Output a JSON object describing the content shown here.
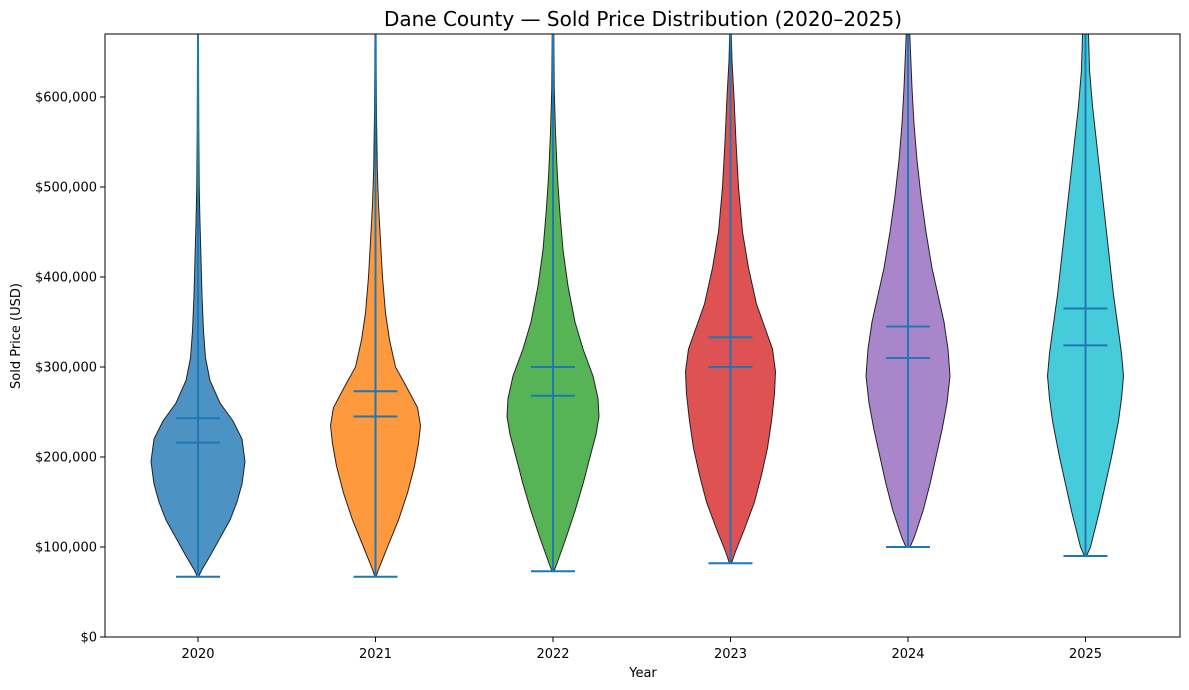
{
  "chart_data": {
    "type": "violin",
    "title": "Dane County — Sold Price Distribution (2020–2025)",
    "xlabel": "Year",
    "ylabel": "Sold Price (USD)",
    "ylim": [
      0,
      670000
    ],
    "yticks": [
      0,
      100000,
      200000,
      300000,
      400000,
      500000,
      600000
    ],
    "ytick_labels": [
      "$0",
      "$100,000",
      "$200,000",
      "$300,000",
      "$400,000",
      "$500,000",
      "$600,000"
    ],
    "categories": [
      "2020",
      "2021",
      "2022",
      "2023",
      "2024",
      "2025"
    ],
    "colors": [
      "#1f77b4",
      "#ff7f0e",
      "#2ca02c",
      "#d62728",
      "#9467bd",
      "#17becf"
    ],
    "stat_line_color": "#1f77b4",
    "grid": false,
    "series": [
      {
        "category": "2020",
        "min": 67000,
        "max": 670000,
        "median": 216000,
        "mean": 243000,
        "profile": [
          [
            67000,
            0.005
          ],
          [
            75000,
            0.04
          ],
          [
            90000,
            0.12
          ],
          [
            110000,
            0.22
          ],
          [
            130000,
            0.32
          ],
          [
            150000,
            0.39
          ],
          [
            170000,
            0.44
          ],
          [
            195000,
            0.47
          ],
          [
            220000,
            0.44
          ],
          [
            240000,
            0.35
          ],
          [
            260000,
            0.22
          ],
          [
            285000,
            0.12
          ],
          [
            310000,
            0.075
          ],
          [
            340000,
            0.055
          ],
          [
            380000,
            0.04
          ],
          [
            420000,
            0.03
          ],
          [
            460000,
            0.02
          ],
          [
            500000,
            0.012
          ],
          [
            560000,
            0.008
          ],
          [
            620000,
            0.006
          ],
          [
            670000,
            0.005
          ]
        ]
      },
      {
        "category": "2021",
        "min": 67000,
        "max": 670000,
        "median": 245000,
        "mean": 273000,
        "profile": [
          [
            67000,
            0.005
          ],
          [
            75000,
            0.03
          ],
          [
            100000,
            0.12
          ],
          [
            130000,
            0.23
          ],
          [
            160000,
            0.32
          ],
          [
            190000,
            0.39
          ],
          [
            215000,
            0.43
          ],
          [
            235000,
            0.45
          ],
          [
            255000,
            0.42
          ],
          [
            280000,
            0.3
          ],
          [
            300000,
            0.2
          ],
          [
            330000,
            0.14
          ],
          [
            360000,
            0.1
          ],
          [
            400000,
            0.07
          ],
          [
            440000,
            0.05
          ],
          [
            480000,
            0.03
          ],
          [
            520000,
            0.018
          ],
          [
            580000,
            0.01
          ],
          [
            630000,
            0.007
          ],
          [
            670000,
            0.006
          ]
        ]
      },
      {
        "category": "2022",
        "min": 73000,
        "max": 670000,
        "median": 268000,
        "mean": 300000,
        "profile": [
          [
            73000,
            0.01
          ],
          [
            85000,
            0.05
          ],
          [
            110000,
            0.13
          ],
          [
            140000,
            0.22
          ],
          [
            170000,
            0.3
          ],
          [
            200000,
            0.37
          ],
          [
            225000,
            0.43
          ],
          [
            245000,
            0.46
          ],
          [
            265000,
            0.45
          ],
          [
            290000,
            0.4
          ],
          [
            320000,
            0.3
          ],
          [
            350000,
            0.22
          ],
          [
            390000,
            0.15
          ],
          [
            430000,
            0.1
          ],
          [
            470000,
            0.07
          ],
          [
            510000,
            0.045
          ],
          [
            560000,
            0.025
          ],
          [
            610000,
            0.012
          ],
          [
            670000,
            0.008
          ]
        ]
      },
      {
        "category": "2023",
        "min": 82000,
        "max": 670000,
        "median": 300000,
        "mean": 333000,
        "profile": [
          [
            82000,
            0.01
          ],
          [
            95000,
            0.05
          ],
          [
            120000,
            0.14
          ],
          [
            150000,
            0.24
          ],
          [
            180000,
            0.31
          ],
          [
            210000,
            0.37
          ],
          [
            240000,
            0.41
          ],
          [
            270000,
            0.44
          ],
          [
            295000,
            0.45
          ],
          [
            320000,
            0.42
          ],
          [
            345000,
            0.34
          ],
          [
            370000,
            0.26
          ],
          [
            410000,
            0.18
          ],
          [
            450000,
            0.12
          ],
          [
            500000,
            0.08
          ],
          [
            550000,
            0.055
          ],
          [
            600000,
            0.035
          ],
          [
            640000,
            0.015
          ],
          [
            670000,
            0.008
          ]
        ]
      },
      {
        "category": "2024",
        "min": 100000,
        "max": 670000,
        "median": 310000,
        "mean": 345000,
        "profile": [
          [
            100000,
            0.02
          ],
          [
            110000,
            0.06
          ],
          [
            140000,
            0.15
          ],
          [
            170000,
            0.22
          ],
          [
            200000,
            0.28
          ],
          [
            230000,
            0.34
          ],
          [
            260000,
            0.39
          ],
          [
            290000,
            0.42
          ],
          [
            320000,
            0.4
          ],
          [
            350000,
            0.36
          ],
          [
            380000,
            0.3
          ],
          [
            410000,
            0.24
          ],
          [
            450000,
            0.18
          ],
          [
            490000,
            0.13
          ],
          [
            530000,
            0.09
          ],
          [
            570000,
            0.06
          ],
          [
            610000,
            0.04
          ],
          [
            650000,
            0.025
          ],
          [
            670000,
            0.018
          ]
        ]
      },
      {
        "category": "2025",
        "min": 90000,
        "max": 670000,
        "median": 324000,
        "mean": 365000,
        "profile": [
          [
            90000,
            0.01
          ],
          [
            100000,
            0.05
          ],
          [
            140000,
            0.14
          ],
          [
            170000,
            0.2
          ],
          [
            200000,
            0.26
          ],
          [
            240000,
            0.33
          ],
          [
            265000,
            0.36
          ],
          [
            290000,
            0.38
          ],
          [
            315000,
            0.36
          ],
          [
            340000,
            0.33
          ],
          [
            380000,
            0.28
          ],
          [
            420000,
            0.24
          ],
          [
            460000,
            0.2
          ],
          [
            500000,
            0.16
          ],
          [
            540000,
            0.12
          ],
          [
            590000,
            0.07
          ],
          [
            630000,
            0.04
          ],
          [
            670000,
            0.03
          ]
        ]
      }
    ]
  }
}
